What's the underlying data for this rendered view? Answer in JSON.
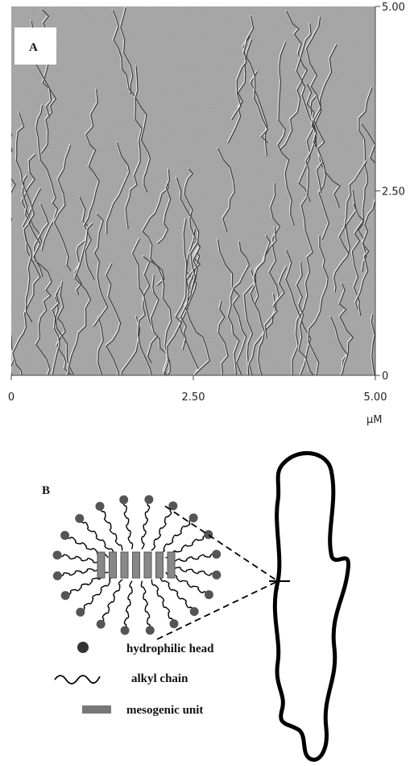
{
  "panel_a": {
    "label": "A",
    "x_axis": {
      "range": [
        0,
        5
      ],
      "ticks": [
        0,
        {
          "value": 2.5,
          "label": "2.50"
        },
        {
          "value": 5,
          "label": "5.00"
        }
      ],
      "unit": "μM"
    },
    "y_axis": {
      "range": [
        0,
        5
      ],
      "ticks": [
        0,
        {
          "value": 2.5,
          "label": "2.50"
        },
        {
          "value": 5,
          "label": "5.00"
        }
      ]
    }
  },
  "panel_b": {
    "label": "B",
    "legend": [
      "hydrophilic head",
      "alkyl chain",
      "mesogenic unit"
    ]
  }
}
